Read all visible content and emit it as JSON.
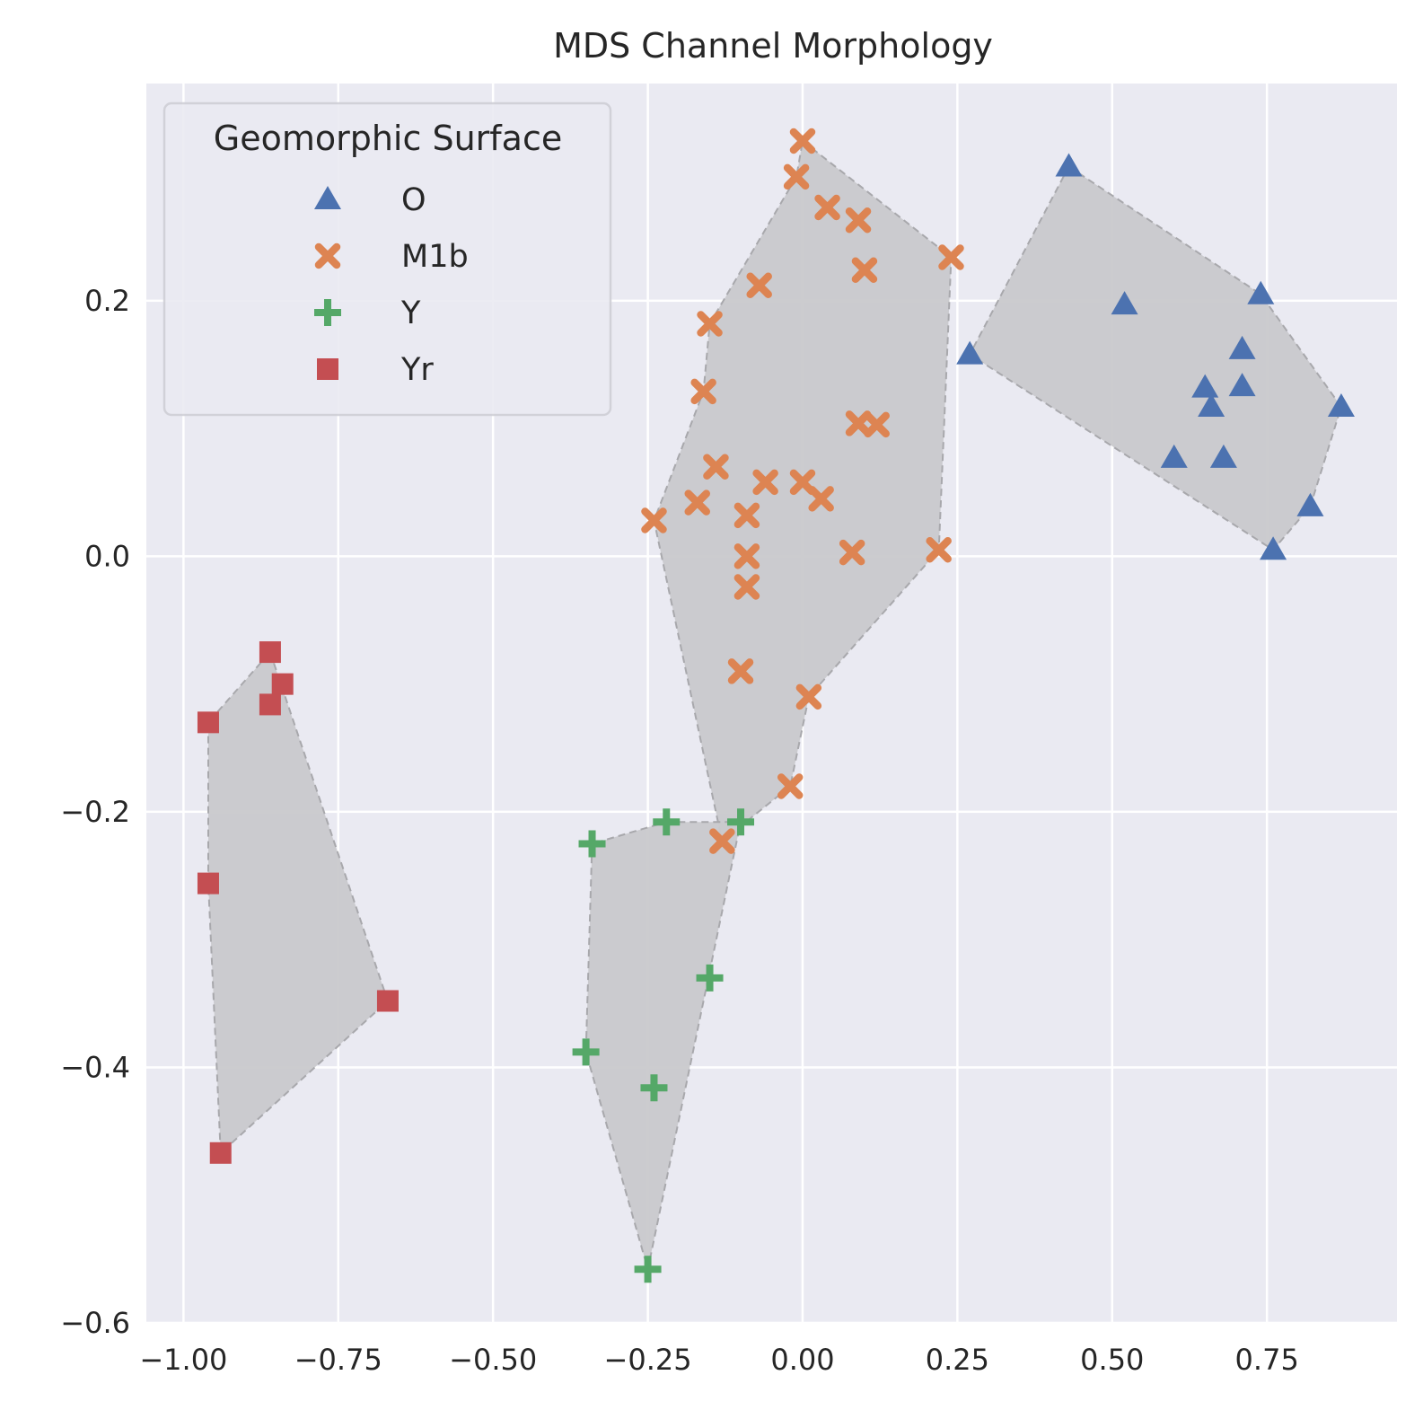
{
  "chart_data": {
    "type": "scatter",
    "title": "MDS Channel Morphology",
    "xlabel": "",
    "ylabel": "",
    "xlim": [
      -1.06,
      0.96
    ],
    "ylim": [
      -0.6,
      0.37
    ],
    "xticks": [
      -1.0,
      -0.75,
      -0.5,
      -0.25,
      0.0,
      0.25,
      0.5,
      0.75
    ],
    "xtick_labels": [
      "−1.00",
      "−0.75",
      "−0.50",
      "−0.25",
      "0.00",
      "0.25",
      "0.50",
      "0.75"
    ],
    "yticks": [
      -0.6,
      -0.4,
      -0.2,
      0.0,
      0.2
    ],
    "ytick_labels": [
      "−0.6",
      "−0.4",
      "−0.2",
      "0.0",
      "0.2"
    ],
    "grid": true,
    "legend": {
      "title": "Geomorphic Surface",
      "position": "top-left"
    },
    "hull_color": "#c9c9cc",
    "series": [
      {
        "name": "O",
        "marker": "triangle",
        "color": "#4c72b0",
        "points": [
          [
            0.43,
            0.305
          ],
          [
            0.52,
            0.197
          ],
          [
            0.74,
            0.205
          ],
          [
            0.27,
            0.158
          ],
          [
            0.71,
            0.162
          ],
          [
            0.65,
            0.132
          ],
          [
            0.71,
            0.133
          ],
          [
            0.66,
            0.117
          ],
          [
            0.87,
            0.117
          ],
          [
            0.6,
            0.077
          ],
          [
            0.68,
            0.077
          ],
          [
            0.82,
            0.039
          ],
          [
            0.76,
            0.005
          ]
        ]
      },
      {
        "name": "M1b",
        "marker": "x",
        "color": "#dd8452",
        "points": [
          [
            0.0,
            0.325
          ],
          [
            -0.01,
            0.297
          ],
          [
            0.04,
            0.273
          ],
          [
            0.09,
            0.263
          ],
          [
            0.24,
            0.234
          ],
          [
            0.1,
            0.224
          ],
          [
            -0.07,
            0.212
          ],
          [
            -0.15,
            0.182
          ],
          [
            -0.16,
            0.129
          ],
          [
            0.09,
            0.104
          ],
          [
            0.12,
            0.103
          ],
          [
            -0.14,
            0.07
          ],
          [
            -0.06,
            0.058
          ],
          [
            0.0,
            0.058
          ],
          [
            0.03,
            0.045
          ],
          [
            -0.17,
            0.042
          ],
          [
            -0.09,
            0.032
          ],
          [
            -0.24,
            0.028
          ],
          [
            0.22,
            0.005
          ],
          [
            0.08,
            0.003
          ],
          [
            -0.09,
            0.0
          ],
          [
            -0.09,
            -0.024
          ],
          [
            -0.1,
            -0.09
          ],
          [
            0.01,
            -0.11
          ],
          [
            -0.02,
            -0.18
          ],
          [
            -0.13,
            -0.223
          ]
        ]
      },
      {
        "name": "Y",
        "marker": "plus",
        "color": "#55a868",
        "points": [
          [
            -0.1,
            -0.208
          ],
          [
            -0.22,
            -0.208
          ],
          [
            -0.34,
            -0.225
          ],
          [
            -0.15,
            -0.33
          ],
          [
            -0.35,
            -0.388
          ],
          [
            -0.24,
            -0.416
          ],
          [
            -0.25,
            -0.558
          ]
        ]
      },
      {
        "name": "Yr",
        "marker": "square",
        "color": "#c44e52",
        "points": [
          [
            -0.86,
            -0.075
          ],
          [
            -0.84,
            -0.1
          ],
          [
            -0.86,
            -0.116
          ],
          [
            -0.96,
            -0.13
          ],
          [
            -0.96,
            -0.256
          ],
          [
            -0.67,
            -0.348
          ],
          [
            -0.94,
            -0.467
          ]
        ]
      }
    ],
    "hulls": [
      [
        [
          0.43,
          0.305
        ],
        [
          0.74,
          0.205
        ],
        [
          0.87,
          0.117
        ],
        [
          0.82,
          0.039
        ],
        [
          0.76,
          0.005
        ],
        [
          0.27,
          0.158
        ]
      ],
      [
        [
          0.0,
          0.325
        ],
        [
          0.24,
          0.234
        ],
        [
          0.22,
          0.005
        ],
        [
          0.01,
          -0.11
        ],
        [
          -0.02,
          -0.18
        ],
        [
          -0.13,
          -0.223
        ],
        [
          -0.24,
          0.028
        ],
        [
          -0.16,
          0.129
        ],
        [
          -0.15,
          0.182
        ],
        [
          -0.01,
          0.297
        ]
      ],
      [
        [
          -0.22,
          -0.208
        ],
        [
          -0.1,
          -0.208
        ],
        [
          -0.25,
          -0.558
        ],
        [
          -0.35,
          -0.388
        ],
        [
          -0.34,
          -0.225
        ]
      ],
      [
        [
          -0.86,
          -0.075
        ],
        [
          -0.67,
          -0.348
        ],
        [
          -0.94,
          -0.467
        ],
        [
          -0.96,
          -0.256
        ],
        [
          -0.96,
          -0.13
        ]
      ]
    ]
  }
}
